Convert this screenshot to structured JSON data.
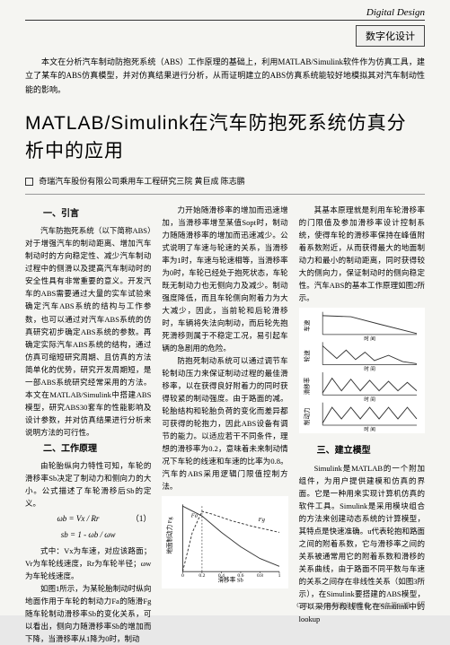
{
  "header": {
    "section_en": "Digital Design",
    "category_cn": "数字化设计"
  },
  "abstract": "本文在分析汽车制动防抱死系统（ABS）工作原理的基础上，利用MATLAB/Simulink软件作为仿真工具，建立了某车的ABS仿真模型，并对仿真结果进行分析，从而证明建立的ABS仿真系统能较好地模拟其对汽车制动性能的影响。",
  "title": "MATLAB/Simulink在汽车防抱死系统仿真分析中的应用",
  "author": "奇瑞汽车股份有限公司乘用车工程研究三院 黄巨成 陈志鹏",
  "col1": {
    "h1": "一、引言",
    "p1": "汽车防抱死系统（以下简称ABS）对于增强汽车的制动距离、增加汽车制动时的方向稳定性、减少汽车制动过程中的侧滑以及提高汽车制动时的安全性具有非常重要的意义。开发汽车的ABS需要通过大量的实车试验来确定汽车ABS系统的结构与工作参数，也可以通过对汽车ABS系统的仿真研究初步确定ABS系统的参数。再确定实际汽车ABS系统的结构，通过仿真可缩短研究周期、且仿真的方法简单化的优势，研究开发周期短，是一部ABS系统研究经常采用的方法。本文在MATLAB/Simulink中搭建ABS模型，研究ABS30套车的性能影响及设计参数，并对仿真结果进行分析来说明方法的可行性。",
    "h2": "二、工作原理",
    "p2": "由轮胎纵向力特性可知，车轮的滑移率Sb决定了制动力和侧向力的大小。公式描述了车轮滑移后Sb的定义。",
    "formula1": "ωb = Vx / Rr",
    "formula2": "sb = 1 - ωb / ωw",
    "formula_num": "（1）",
    "p3": "式中：Vx为车速，对应该路面；Vr为车轮线速度，Rr为车轮半径；ωw为车轮线速度。",
    "p4": "如图1所示，为某轮胎制动时纵向地面作用于车轮的制动力Fa的随滑Fg随车轮制动滑移率Sb的变化关系，可以看出，侧向力随滑移率Sb的增加而下降，当滑移率从1降为0时，制动"
  },
  "col2": {
    "p1": "力开始随滑移率的增加而迅速增加，当滑移率增至某值Sopt时，制动力随随滑移率的增加而迅速减少。公式说明了车速与轮速的关系，当滑移率为1时，车速与轮速相等，当滑移率为0时，车轮已经处于抱死状态，车轮既无制动力也无侧向力及减少。制动强度降低，而且车轮侧向附着力为大大减少，因此，当前轮和后轮滑移时，车辆将失法向制动，而后轮先抱死滑移则属于不稳定工况，易引起车辆的急剧用的危险。",
    "p2": "防抱死制动系统可以通过调节车轮制动压力来保证制动过程的最佳滑移率，以在获得良好附着力的同时获得较紧的制动强度。由于路面的减。轮胎结构和轮胎负荷的变化而差异都可获得的轮抱力，因此ABS设备有调节的能力。以适应若干不同条件，理想的滑移率为0.2，意味着未来制动情况下车轮的线速和车速的比率为0.8。汽车的ABS采用逻辑门限值控制方法。"
  },
  "col3": {
    "p1": "其基本原理就是利用车轮滑移率的门限值及参加滑移率设计控制系统，使得车轮的滑移率保持在峰值附着系数附近，从而获得最大的地面制动力和最小的制动距离，同时获得较大的侧向力，保证制动时的侧向稳定性。汽车ABS的基本工作原理如图2所示。",
    "h1": "三、建立模型",
    "p2": "Simulink是MATLAB的一个附加组件，为用户提供建模和仿真的界面。它是一种用来实现计算机仿真的软件工具。Simulink是采用模块组合的方法来创建动态系统的计算模型，其特点是快速准确。u代表轮抱和路面之间的附着系数，它与滑移率之间的关系被通常用它的附着系数和滑移的关系曲线，由于路面不同平数与车速的关系之间存在非线性关系（如图3所示），在Simulink要搭建的ABS模型，可以采用分段线性化在Simulink中的lookup"
  },
  "chart1": {
    "type": "line",
    "xaxis": "滑移率 Sb",
    "yaxis": "地面制动力 Fg",
    "xlim": [
      0,
      1.0
    ],
    "xticks": [
      0,
      0.2,
      0.4,
      0.6,
      0.8,
      1.0
    ],
    "series": [
      {
        "name": "Fa",
        "style": "dashed",
        "color": "#333",
        "points": [
          [
            0,
            0
          ],
          [
            0.1,
            0.6
          ],
          [
            0.2,
            0.92
          ],
          [
            0.3,
            0.88
          ],
          [
            0.5,
            0.78
          ],
          [
            0.7,
            0.7
          ],
          [
            1.0,
            0.6
          ]
        ]
      },
      {
        "name": "Fg",
        "style": "solid",
        "color": "#333",
        "points": [
          [
            0,
            1.0
          ],
          [
            0.2,
            0.85
          ],
          [
            0.4,
            0.6
          ],
          [
            0.6,
            0.38
          ],
          [
            0.8,
            0.2
          ],
          [
            1.0,
            0.08
          ]
        ]
      }
    ],
    "marker_line": {
      "x": 0.2,
      "label": "Sopt"
    },
    "background": "#ffffff"
  },
  "chart2": {
    "type": "multi-panel",
    "panels": 4,
    "xaxis_label": "时 间",
    "panel_labels": [
      "车速",
      "轮速",
      "滑移率",
      "制动力"
    ],
    "line_color": "#333",
    "background": "#ffffff",
    "panel1": {
      "points": [
        [
          0,
          0.9
        ],
        [
          0.3,
          0.85
        ],
        [
          0.6,
          0.5
        ],
        [
          1.0,
          0.05
        ]
      ]
    },
    "panel2": {
      "points": [
        [
          0,
          0.9
        ],
        [
          0.15,
          0.3
        ],
        [
          0.25,
          0.7
        ],
        [
          0.35,
          0.25
        ],
        [
          0.45,
          0.6
        ],
        [
          0.55,
          0.2
        ],
        [
          0.7,
          0.45
        ],
        [
          0.85,
          0.15
        ],
        [
          1.0,
          0.05
        ]
      ]
    },
    "panel3": {
      "points": [
        [
          0,
          0.1
        ],
        [
          0.1,
          0.8
        ],
        [
          0.2,
          0.2
        ],
        [
          0.3,
          0.75
        ],
        [
          0.4,
          0.2
        ],
        [
          0.5,
          0.7
        ],
        [
          0.6,
          0.2
        ],
        [
          0.7,
          0.65
        ],
        [
          0.8,
          0.2
        ],
        [
          0.9,
          0.6
        ],
        [
          1.0,
          0.2
        ]
      ]
    },
    "panel4": {
      "points": [
        [
          0,
          0.1
        ],
        [
          0.1,
          0.85
        ],
        [
          0.2,
          0.3
        ],
        [
          0.3,
          0.85
        ],
        [
          0.4,
          0.3
        ],
        [
          0.5,
          0.85
        ],
        [
          0.6,
          0.3
        ],
        [
          0.7,
          0.85
        ],
        [
          0.8,
          0.3
        ],
        [
          0.9,
          0.85
        ],
        [
          1.0,
          0.3
        ]
      ]
    }
  },
  "footer": {
    "text": "CAD/CAM与制造业信息化·2008年第10期",
    "page": "67"
  }
}
